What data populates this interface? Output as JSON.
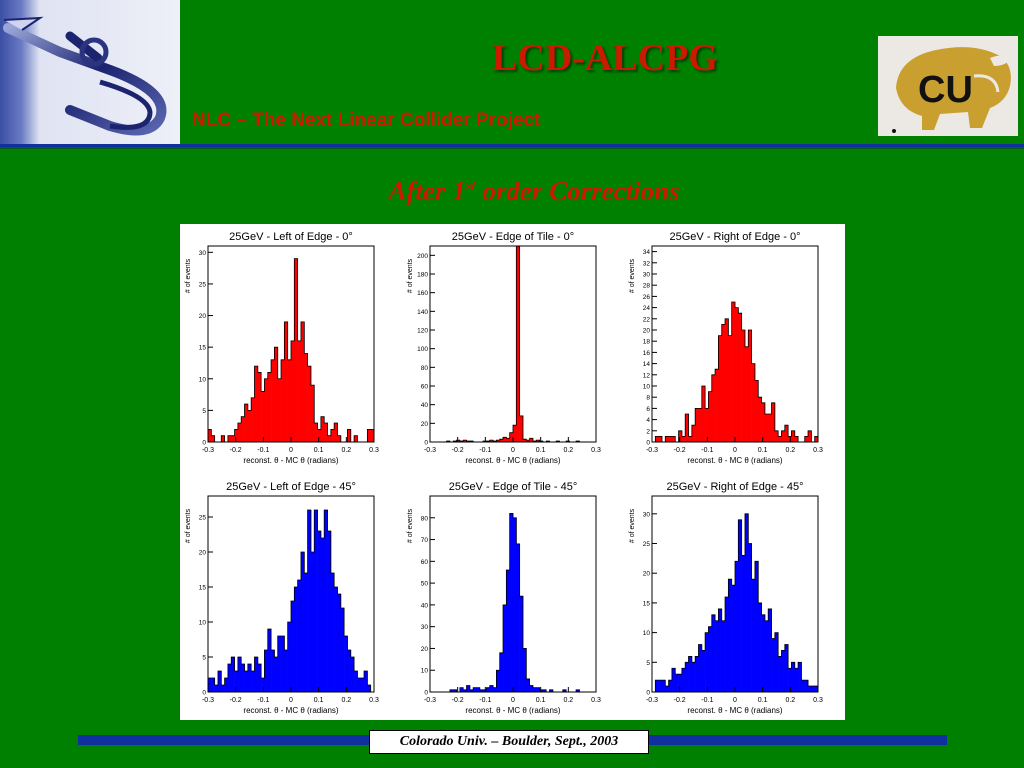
{
  "header": {
    "title": "LCD-ALCPG",
    "subtitle": "NLC – The Next Linear Collider Project",
    "logo_left_icon": "nlc-logo-icon",
    "logo_right_icon": "cu-buffalo-logo-icon",
    "logo_right_text": "CU"
  },
  "slide_title": {
    "main": "After 1",
    "sup": "st",
    "rest": " order Corrections"
  },
  "footer": {
    "text": "Colorado Univ. – Boulder, Sept., 2003"
  },
  "colors": {
    "background": "#008000",
    "accent": "#cc1a00",
    "bar_blue": "#1030a0",
    "hist_red": "#ff0000",
    "hist_blue": "#0000ff"
  },
  "chart_data": [
    {
      "type": "bar",
      "title": "25GeV - Left of Edge - 0°",
      "xlabel": "reconst. θ - MC  θ (radians)",
      "ylabel": "# of events",
      "color": "#ff0000",
      "xlim": [
        -0.3,
        0.3
      ],
      "ylim": [
        0,
        31
      ],
      "xticks": [
        "-0.3",
        "-0.2",
        "-0.1",
        "0",
        "0.1",
        "0.2",
        "0.3"
      ],
      "yticks": [
        "0",
        "5",
        "10",
        "15",
        "20",
        "25",
        "30"
      ],
      "values": [
        2,
        1,
        0,
        0,
        1,
        0,
        1,
        1,
        2,
        3,
        4,
        6,
        5,
        7,
        12,
        11,
        8,
        10,
        11,
        13,
        15,
        10,
        13,
        19,
        13,
        16,
        29,
        16,
        19,
        14,
        12,
        9,
        3,
        2,
        4,
        3,
        1,
        2,
        3,
        1,
        0,
        0,
        2,
        0,
        1,
        0,
        0,
        0,
        2,
        2
      ]
    },
    {
      "type": "bar",
      "title": "25GeV - Edge of Tile - 0°",
      "xlabel": "reconst. θ - MC  θ (radians)",
      "ylabel": "# of events",
      "color": "#ff0000",
      "xlim": [
        -0.3,
        0.3
      ],
      "ylim": [
        0,
        210
      ],
      "xticks": [
        "-0.3",
        "-0.2",
        "-0.1",
        "0",
        "0.1",
        "0.2",
        "0.3"
      ],
      "yticks": [
        "0",
        "20",
        "40",
        "60",
        "80",
        "100",
        "120",
        "140",
        "160",
        "180",
        "200"
      ],
      "values": [
        0,
        0,
        0,
        0,
        0,
        1,
        0,
        1,
        2,
        1,
        2,
        1,
        1,
        0,
        0,
        0,
        1,
        1,
        2,
        1,
        2,
        3,
        5,
        4,
        10,
        18,
        212,
        28,
        3,
        2,
        4,
        1,
        2,
        1,
        0,
        1,
        0,
        0,
        1,
        0,
        0,
        1,
        0,
        0,
        1,
        0,
        0,
        0,
        0,
        0
      ]
    },
    {
      "type": "bar",
      "title": "25GeV - Right of Edge - 0°",
      "xlabel": "reconst. θ - MC  θ (radians)",
      "ylabel": "# of events",
      "color": "#ff0000",
      "xlim": [
        -0.3,
        0.3
      ],
      "ylim": [
        0,
        35
      ],
      "xticks": [
        "-0.3",
        "-0.2",
        "-0.1",
        "0",
        "0.1",
        "0.2",
        "0.3"
      ],
      "yticks": [
        "0",
        "2",
        "4",
        "6",
        "8",
        "10",
        "12",
        "14",
        "16",
        "18",
        "20",
        "22",
        "24",
        "26",
        "28",
        "30",
        "32",
        "34"
      ],
      "values": [
        0,
        1,
        1,
        0,
        1,
        1,
        1,
        0,
        2,
        1,
        5,
        1,
        3,
        6,
        6,
        10,
        6,
        9,
        12,
        13,
        19,
        21,
        22,
        19,
        25,
        24,
        23,
        20,
        17,
        20,
        14,
        11,
        8,
        7,
        5,
        5,
        7,
        2,
        1,
        2,
        3,
        1,
        2,
        1,
        0,
        0,
        1,
        2,
        0,
        1
      ]
    },
    {
      "type": "bar",
      "title": "25GeV - Left of Edge - 45°",
      "xlabel": "reconst. θ - MC  θ (radians)",
      "ylabel": "# of events",
      "color": "#0000ff",
      "xlim": [
        -0.3,
        0.3
      ],
      "ylim": [
        0,
        28
      ],
      "xticks": [
        "-0.3",
        "-0.2",
        "-0.1",
        "0",
        "0.1",
        "0.2",
        "0.3"
      ],
      "yticks": [
        "0",
        "5",
        "10",
        "15",
        "20",
        "25"
      ],
      "values": [
        2,
        2,
        1,
        3,
        1,
        2,
        4,
        5,
        3,
        5,
        4,
        3,
        4,
        3,
        5,
        4,
        2,
        6,
        9,
        6,
        5,
        8,
        8,
        6,
        10,
        13,
        15,
        16,
        20,
        17,
        26,
        20,
        26,
        23,
        22,
        26,
        23,
        17,
        15,
        14,
        12,
        8,
        6,
        5,
        3,
        2,
        2,
        3,
        1,
        0
      ]
    },
    {
      "type": "bar",
      "title": "25GeV - Edge of Tile - 45°",
      "xlabel": "reconst. θ - MC  θ (radians)",
      "ylabel": "# of events",
      "color": "#0000ff",
      "xlim": [
        -0.3,
        0.3
      ],
      "ylim": [
        0,
        90
      ],
      "xticks": [
        "-0.3",
        "-0.2",
        "-0.1",
        "0",
        "0.1",
        "0.2",
        "0.3"
      ],
      "yticks": [
        "0",
        "10",
        "20",
        "30",
        "40",
        "50",
        "60",
        "70",
        "80"
      ],
      "values": [
        0,
        0,
        0,
        0,
        0,
        0,
        1,
        1,
        0,
        2,
        1,
        3,
        1,
        2,
        2,
        1,
        1,
        2,
        3,
        2,
        10,
        18,
        40,
        56,
        82,
        80,
        68,
        44,
        20,
        6,
        3,
        2,
        2,
        1,
        1,
        0,
        1,
        0,
        0,
        0,
        1,
        0,
        0,
        0,
        1,
        0,
        0,
        0,
        0,
        0
      ]
    },
    {
      "type": "bar",
      "title": "25GeV - Right of Edge - 45°",
      "xlabel": "reconst. θ - MC  θ (radians)",
      "ylabel": "# of events",
      "color": "#0000ff",
      "xlim": [
        -0.3,
        0.3
      ],
      "ylim": [
        0,
        33
      ],
      "xticks": [
        "-0.3",
        "-0.2",
        "-0.1",
        "0",
        "0.1",
        "0.2",
        "0.3"
      ],
      "yticks": [
        "0",
        "5",
        "10",
        "15",
        "20",
        "25",
        "30"
      ],
      "values": [
        0,
        2,
        2,
        2,
        1,
        2,
        4,
        3,
        3,
        4,
        5,
        6,
        5,
        6,
        8,
        7,
        10,
        11,
        13,
        12,
        14,
        12,
        16,
        19,
        18,
        22,
        29,
        23,
        30,
        25,
        19,
        22,
        15,
        13,
        12,
        14,
        9,
        10,
        6,
        7,
        8,
        4,
        5,
        4,
        5,
        2,
        2,
        1,
        1,
        1
      ]
    }
  ]
}
